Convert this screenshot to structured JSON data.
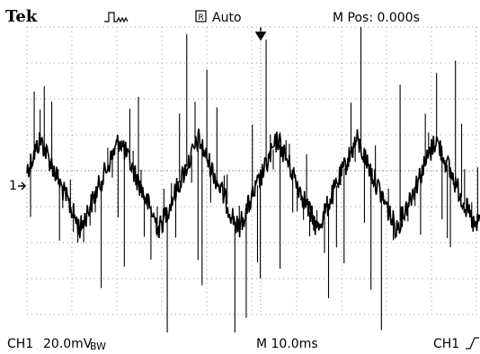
{
  "header": {
    "brand": "Tek",
    "trigger_status": "Auto",
    "position": "M Pos: 0.000s"
  },
  "channel_marker": "1",
  "footer": {
    "channel": "CH1",
    "scale": "20.0mV",
    "bandwidth": "BW",
    "timebase": "M 10.0ms",
    "trigger_source": "CH1"
  }
}
